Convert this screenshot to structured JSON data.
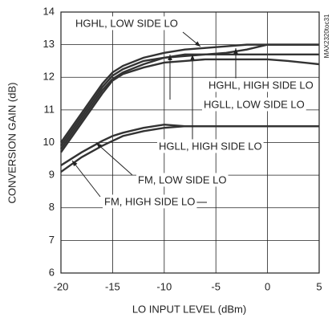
{
  "chart_data": {
    "type": "line",
    "x_label": "LO INPUT LEVEL (dBm)",
    "y_label": "CONVERSION GAIN (dB)",
    "figure_id": "MAX2320toc31",
    "x": [
      -20,
      -18,
      -16,
      -15,
      -14,
      -12,
      -10,
      -8,
      -6,
      -4,
      -2,
      0,
      2,
      5
    ],
    "series": [
      {
        "name": "HGHL, LOW SIDE LO",
        "color": "#333333",
        "values": [
          10.0,
          10.9,
          11.8,
          12.15,
          12.35,
          12.6,
          12.75,
          12.85,
          12.9,
          12.95,
          13.0,
          13.0,
          13.0,
          13.0
        ]
      },
      {
        "name": "HGHL, HIGH SIDE LO",
        "color": "#333333",
        "values": [
          9.9,
          10.8,
          11.7,
          12.05,
          12.25,
          12.5,
          12.6,
          12.65,
          12.7,
          12.75,
          12.85,
          13.0,
          13.0,
          13.0
        ]
      },
      {
        "name": "HGLL, LOW SIDE LO",
        "color": "#333333",
        "values": [
          9.8,
          10.7,
          11.6,
          11.95,
          12.15,
          12.4,
          12.6,
          12.7,
          12.7,
          12.7,
          12.7,
          12.7,
          12.7,
          12.7
        ]
      },
      {
        "name": "HGLL, HIGH SIDE LO",
        "color": "#333333",
        "values": [
          9.7,
          10.6,
          11.5,
          11.9,
          12.1,
          12.3,
          12.45,
          12.5,
          12.55,
          12.55,
          12.55,
          12.55,
          12.5,
          12.4
        ]
      },
      {
        "name": "FM, LOW SIDE LO",
        "color": "#333333",
        "values": [
          9.3,
          9.7,
          10.05,
          10.2,
          10.3,
          10.45,
          10.55,
          10.5,
          10.5,
          10.5,
          10.5,
          10.5,
          10.5,
          10.5
        ]
      },
      {
        "name": "FM, HIGH SIDE LO",
        "color": "#333333",
        "values": [
          9.1,
          9.55,
          9.9,
          10.05,
          10.2,
          10.35,
          10.45,
          10.5,
          10.5,
          10.5,
          10.5,
          10.5,
          10.5,
          10.5
        ]
      }
    ],
    "xlim": [
      -20,
      5
    ],
    "xticks": [
      -20,
      -15,
      -10,
      -5,
      0,
      5
    ],
    "ylim": [
      6,
      14
    ],
    "yticks": [
      6,
      7,
      8,
      9,
      10,
      11,
      12,
      13,
      14
    ],
    "grid": true
  }
}
